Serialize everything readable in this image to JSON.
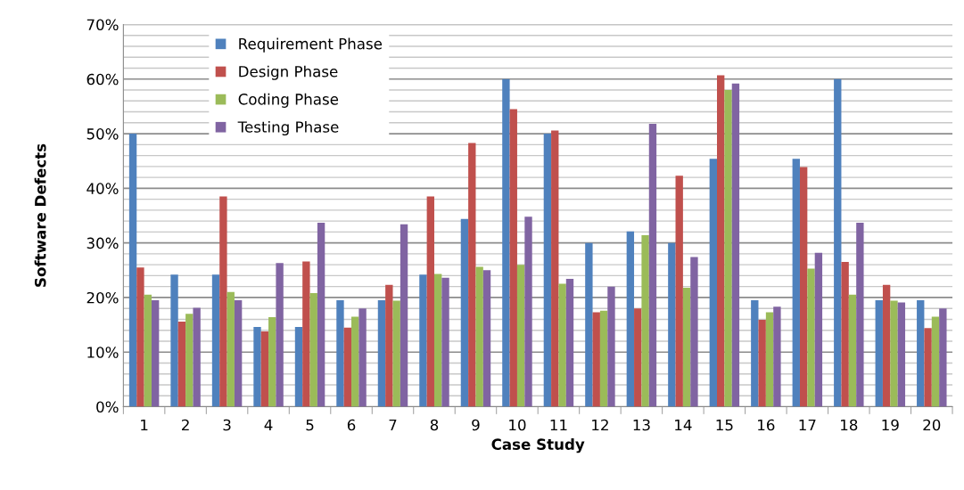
{
  "chart_data": {
    "type": "bar",
    "xlabel": "Case Study",
    "ylabel": "Software Defects",
    "categories": [
      "1",
      "2",
      "3",
      "4",
      "5",
      "6",
      "7",
      "8",
      "9",
      "10",
      "11",
      "12",
      "13",
      "14",
      "15",
      "16",
      "17",
      "18",
      "19",
      "20"
    ],
    "series": [
      {
        "name": "Requirement Phase",
        "color": "#4f81bd",
        "values": [
          50,
          24.2,
          24.2,
          14.6,
          14.6,
          19.5,
          19.5,
          24.2,
          34.4,
          60,
          50,
          30,
          32.1,
          30,
          45.4,
          19.5,
          45.4,
          60,
          19.5,
          19.5
        ]
      },
      {
        "name": "Design Phase",
        "color": "#c0504d",
        "values": [
          25.5,
          15.6,
          38.5,
          13.8,
          26.6,
          14.5,
          22.3,
          38.5,
          48.3,
          54.5,
          50.6,
          17.3,
          18,
          42.3,
          60.7,
          15.9,
          43.9,
          26.5,
          22.3,
          14.4
        ]
      },
      {
        "name": "Coding Phase",
        "color": "#9bbb59",
        "values": [
          20.5,
          17,
          21,
          16.4,
          20.8,
          16.5,
          19.4,
          24.3,
          25.6,
          26,
          22.5,
          17.6,
          31.4,
          21.8,
          58,
          17.3,
          25.3,
          20.5,
          19.4,
          16.5
        ]
      },
      {
        "name": "Testing Phase",
        "color": "#8064a2",
        "values": [
          19.5,
          18.1,
          19.5,
          26.3,
          33.7,
          18,
          33.4,
          23.6,
          25,
          34.8,
          23.4,
          22,
          51.8,
          27.4,
          59.2,
          18.3,
          28.2,
          33.7,
          19.1,
          18
        ]
      }
    ],
    "ylim": [
      0,
      70
    ],
    "yticks": [
      {
        "value": 0,
        "label": "0%"
      },
      {
        "value": 2,
        "label": null
      },
      {
        "value": 4,
        "label": null
      },
      {
        "value": 6,
        "label": null
      },
      {
        "value": 8,
        "label": null
      },
      {
        "value": 10,
        "label": "10%"
      },
      {
        "value": 12,
        "label": null
      },
      {
        "value": 14,
        "label": null
      },
      {
        "value": 16,
        "label": null
      },
      {
        "value": 18,
        "label": null
      },
      {
        "value": 20,
        "label": "20%"
      },
      {
        "value": 22,
        "label": null
      },
      {
        "value": 24,
        "label": null
      },
      {
        "value": 26,
        "label": null
      },
      {
        "value": 28,
        "label": null
      },
      {
        "value": 30,
        "label": "30%"
      },
      {
        "value": 32,
        "label": null
      },
      {
        "value": 34,
        "label": null
      },
      {
        "value": 36,
        "label": null
      },
      {
        "value": 38,
        "label": null
      },
      {
        "value": 40,
        "label": "40%"
      },
      {
        "value": 42,
        "label": null
      },
      {
        "value": 44,
        "label": null
      },
      {
        "value": 46,
        "label": null
      },
      {
        "value": 48,
        "label": null
      },
      {
        "value": 50,
        "label": "50%"
      },
      {
        "value": 52,
        "label": null
      },
      {
        "value": 54,
        "label": null
      },
      {
        "value": 56,
        "label": null
      },
      {
        "value": 58,
        "label": null
      },
      {
        "value": 60,
        "label": "60%"
      },
      {
        "value": 62,
        "label": null
      },
      {
        "value": 64,
        "label": null
      },
      {
        "value": 66,
        "label": null
      },
      {
        "value": 68,
        "label": null
      },
      {
        "value": 70,
        "label": "70%"
      }
    ],
    "grid": "y",
    "legend": "top left"
  }
}
